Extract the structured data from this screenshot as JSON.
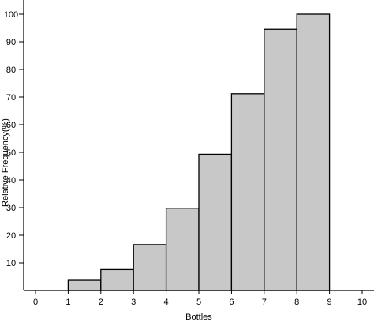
{
  "chart_data": {
    "type": "bar",
    "title": "",
    "xlabel": "Bottles",
    "ylabel": "Relative Frequency(%)",
    "xlim": [
      0,
      10
    ],
    "ylim": [
      0,
      100
    ],
    "x_ticks": [
      "0",
      "1",
      "2",
      "3",
      "4",
      "5",
      "6",
      "7",
      "8",
      "9",
      "10"
    ],
    "y_ticks": [
      "10",
      "20",
      "30",
      "40",
      "50",
      "60",
      "70",
      "80",
      "90",
      "100"
    ],
    "bins": [
      {
        "from": 1,
        "to": 2,
        "value": 3.7
      },
      {
        "from": 2,
        "to": 3,
        "value": 7.6
      },
      {
        "from": 3,
        "to": 4,
        "value": 16.6
      },
      {
        "from": 4,
        "to": 5,
        "value": 29.8
      },
      {
        "from": 5,
        "to": 6,
        "value": 49.3
      },
      {
        "from": 6,
        "to": 7,
        "value": 71.2
      },
      {
        "from": 7,
        "to": 8,
        "value": 94.5
      },
      {
        "from": 8,
        "to": 9,
        "value": 100
      }
    ],
    "grid": false,
    "legend": "none",
    "bar_color": "#c8c8c8"
  }
}
